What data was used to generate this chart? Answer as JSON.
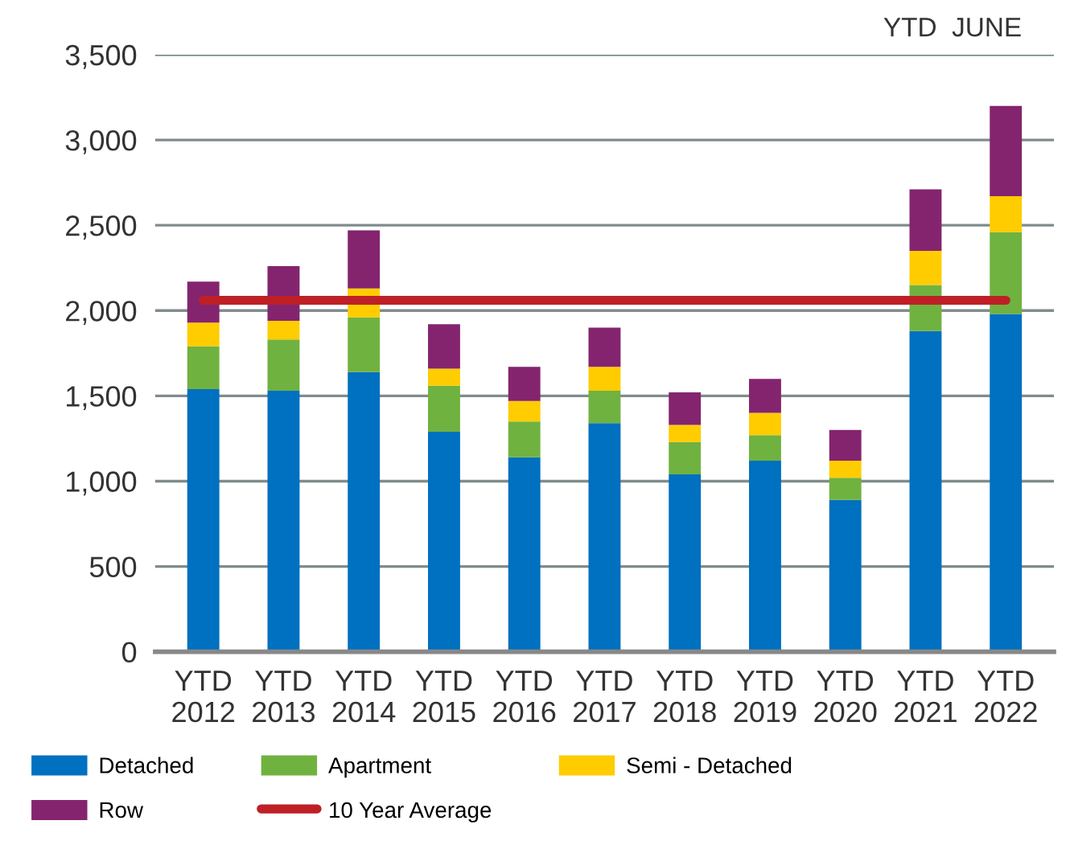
{
  "chart_data": {
    "type": "bar",
    "stacked": true,
    "categories": [
      "YTD\n2012",
      "YTD\n2013",
      "YTD\n2014",
      "YTD\n2015",
      "YTD\n2016",
      "YTD\n2017",
      "YTD\n2018",
      "YTD\n2019",
      "YTD\n2020",
      "YTD\n2021",
      "YTD\n2022"
    ],
    "series": [
      {
        "name": "Detached",
        "color": "#0070c0",
        "values": [
          1540,
          1530,
          1640,
          1290,
          1140,
          1340,
          1040,
          1120,
          890,
          1880,
          1980
        ]
      },
      {
        "name": "Apartment",
        "color": "#70b23f",
        "values": [
          250,
          300,
          320,
          270,
          210,
          190,
          190,
          150,
          130,
          270,
          480
        ]
      },
      {
        "name": "Semi - Detached",
        "color": "#ffcc00",
        "values": [
          140,
          110,
          170,
          100,
          120,
          140,
          100,
          130,
          100,
          200,
          210
        ]
      },
      {
        "name": "Row",
        "color": "#84246f",
        "values": [
          240,
          320,
          340,
          260,
          200,
          230,
          190,
          200,
          180,
          360,
          530
        ]
      },
      {
        "name": "10 Year Average",
        "type": "line",
        "color": "#be2026",
        "values": [
          2060,
          2060,
          2060,
          2060,
          2060,
          2060,
          2060,
          2060,
          2060,
          2060,
          2060
        ]
      }
    ],
    "ylim": [
      0,
      3500
    ],
    "yticks": [
      {
        "value": 0,
        "label": "0"
      },
      {
        "value": 500,
        "label": "500"
      },
      {
        "value": 1000,
        "label": "1,000"
      },
      {
        "value": 1500,
        "label": "1,500"
      },
      {
        "value": 2000,
        "label": "2,000"
      },
      {
        "value": 2500,
        "label": "2,500"
      },
      {
        "value": 3000,
        "label": "3,000"
      },
      {
        "value": 3500,
        "label": "3,500"
      }
    ],
    "grid": "y",
    "legend": "bottom",
    "annotations": [
      "YTD  JUNE"
    ]
  }
}
